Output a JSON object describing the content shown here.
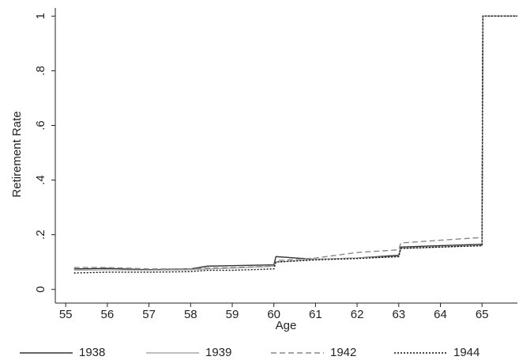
{
  "chart_data": {
    "type": "line",
    "xlabel": "Age",
    "ylabel": "Retirement Rate",
    "x": [
      55.2,
      56,
      57,
      58,
      58.4,
      59,
      60,
      60.05,
      61,
      62,
      63,
      63.05,
      64,
      65,
      65.02,
      65.85
    ],
    "series": [
      {
        "name": "1938",
        "color": "#333333",
        "dash": "solid",
        "values": [
          0.075,
          0.077,
          0.072,
          0.075,
          0.085,
          0.087,
          0.09,
          0.12,
          0.11,
          0.115,
          0.125,
          0.155,
          0.16,
          0.165,
          1,
          1
        ]
      },
      {
        "name": "1939",
        "color": "#aaaaaa",
        "dash": "solid",
        "values": [
          0.07,
          0.072,
          0.07,
          0.072,
          0.075,
          0.078,
          0.085,
          0.1,
          0.11,
          0.115,
          0.12,
          0.15,
          0.155,
          0.16,
          1,
          1
        ]
      },
      {
        "name": "1942",
        "color": "#888888",
        "dash": "dashed",
        "values": [
          0.08,
          0.08,
          0.075,
          0.075,
          0.078,
          0.08,
          0.085,
          0.105,
          0.115,
          0.135,
          0.145,
          0.17,
          0.18,
          0.19,
          1,
          1
        ]
      },
      {
        "name": "1944",
        "color": "#111111",
        "dash": "dotted",
        "values": [
          0.06,
          0.063,
          0.063,
          0.065,
          0.07,
          0.07,
          0.075,
          0.1,
          0.108,
          0.113,
          0.12,
          0.15,
          0.155,
          0.16,
          1,
          1
        ]
      }
    ],
    "xlim": [
      54.75,
      65.85
    ],
    "xticks": [
      55,
      56,
      57,
      58,
      59,
      60,
      61,
      62,
      63,
      64,
      65
    ],
    "ylim": [
      -0.05,
      1.03
    ],
    "yticks": [
      0,
      {
        "value": 0.2,
        "label": ".2"
      },
      {
        "value": 0.4,
        "label": ".4"
      },
      {
        "value": 0.6,
        "label": ".6"
      },
      {
        "value": 0.8,
        "label": ".8"
      },
      1
    ],
    "legend": "bottom"
  }
}
